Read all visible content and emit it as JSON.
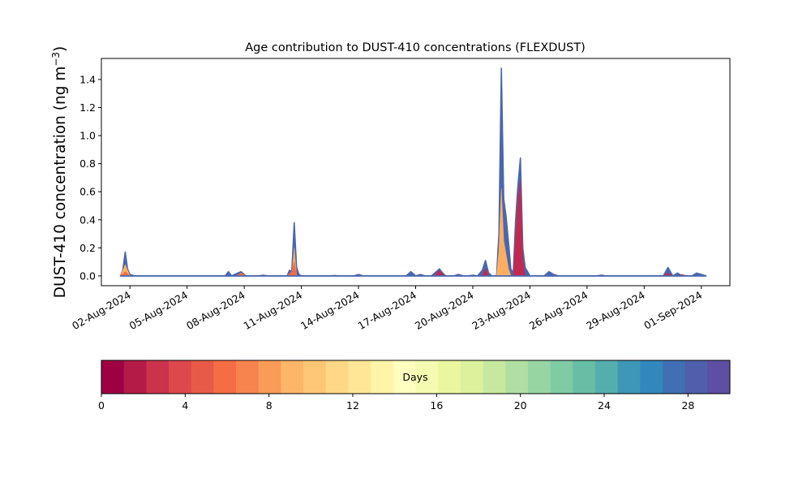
{
  "chart_data": {
    "type": "area",
    "title": "Age contribution to DUST-410 concentrations (FLEXDUST)",
    "ylabel": "DUST-410 concentration (ng m⁻³)",
    "ylabel_main": "DUST-410 concentration (ng m",
    "ylabel_sup": "−3",
    "ylabel_end": ")",
    "xlabel": "",
    "xlim": [
      "2024-07-31T12:00",
      "2024-09-02T12:00"
    ],
    "ylim": [
      -0.07,
      1.55
    ],
    "yticks": [
      0.0,
      0.2,
      0.4,
      0.6,
      0.8,
      1.0,
      1.2,
      1.4
    ],
    "ytick_labels": [
      "0.0",
      "0.2",
      "0.4",
      "0.6",
      "0.8",
      "1.0",
      "1.2",
      "1.4"
    ],
    "xticks": [
      "2024-08-02",
      "2024-08-05",
      "2024-08-08",
      "2024-08-11",
      "2024-08-14",
      "2024-08-17",
      "2024-08-20",
      "2024-08-23",
      "2024-08-26",
      "2024-08-29",
      "2024-09-01"
    ],
    "xtick_labels": [
      "02-Aug-2024",
      "05-Aug-2024",
      "08-Aug-2024",
      "11-Aug-2024",
      "14-Aug-2024",
      "17-Aug-2024",
      "20-Aug-2024",
      "23-Aug-2024",
      "26-Aug-2024",
      "29-Aug-2024",
      "01-Sep-2024"
    ],
    "series": [
      {
        "color": "#4a67ae",
        "points": [
          [
            "2024-08-01T12:00",
            0.0
          ],
          [
            "2024-08-01T15:00",
            0.04
          ],
          [
            "2024-08-01T18:00",
            0.17
          ],
          [
            "2024-08-01T21:00",
            0.05
          ],
          [
            "2024-08-02T00:00",
            0.01
          ],
          [
            "2024-08-02T06:00",
            0.0
          ],
          [
            "2024-08-07T00:00",
            0.0
          ],
          [
            "2024-08-07T04:00",
            0.03
          ],
          [
            "2024-08-07T08:00",
            0.0
          ],
          [
            "2024-08-07T16:00",
            0.02
          ],
          [
            "2024-08-07T20:00",
            0.03
          ],
          [
            "2024-08-08T02:00",
            0.0
          ],
          [
            "2024-08-08T18:00",
            0.0
          ],
          [
            "2024-08-09T00:00",
            0.005
          ],
          [
            "2024-08-09T06:00",
            0.0
          ],
          [
            "2024-08-10T06:00",
            0.0
          ],
          [
            "2024-08-10T09:00",
            0.04
          ],
          [
            "2024-08-10T12:00",
            0.03
          ],
          [
            "2024-08-10T15:00",
            0.38
          ],
          [
            "2024-08-10T18:00",
            0.06
          ],
          [
            "2024-08-10T21:00",
            0.01
          ],
          [
            "2024-08-11T00:00",
            0.0
          ],
          [
            "2024-08-12T12:00",
            0.0
          ],
          [
            "2024-08-12T18:00",
            0.003
          ],
          [
            "2024-08-12T23:00",
            0.0
          ],
          [
            "2024-08-13T18:00",
            0.0
          ],
          [
            "2024-08-14T00:00",
            0.01
          ],
          [
            "2024-08-14T06:00",
            0.0
          ],
          [
            "2024-08-16T12:00",
            0.0
          ],
          [
            "2024-08-16T18:00",
            0.03
          ],
          [
            "2024-08-17T00:00",
            0.0
          ],
          [
            "2024-08-17T06:00",
            0.01
          ],
          [
            "2024-08-17T12:00",
            0.0
          ],
          [
            "2024-08-17T20:00",
            0.0
          ],
          [
            "2024-08-18T02:00",
            0.03
          ],
          [
            "2024-08-18T06:00",
            0.05
          ],
          [
            "2024-08-18T10:00",
            0.02
          ],
          [
            "2024-08-18T14:00",
            0.0
          ],
          [
            "2024-08-19T00:00",
            0.0
          ],
          [
            "2024-08-19T06:00",
            0.01
          ],
          [
            "2024-08-19T12:00",
            0.0
          ],
          [
            "2024-08-19T18:00",
            0.0
          ],
          [
            "2024-08-20T00:00",
            0.005
          ],
          [
            "2024-08-20T06:00",
            0.0
          ],
          [
            "2024-08-20T06:00",
            0.0
          ],
          [
            "2024-08-20T12:00",
            0.04
          ],
          [
            "2024-08-20T16:00",
            0.11
          ],
          [
            "2024-08-20T20:00",
            0.02
          ],
          [
            "2024-08-21T00:00",
            0.0
          ],
          [
            "2024-08-21T06:00",
            0.0
          ],
          [
            "2024-08-21T09:00",
            0.3
          ],
          [
            "2024-08-21T12:00",
            1.48
          ],
          [
            "2024-08-21T15:00",
            0.55
          ],
          [
            "2024-08-21T18:00",
            0.42
          ],
          [
            "2024-08-21T21:00",
            0.24
          ],
          [
            "2024-08-22T00:00",
            0.05
          ],
          [
            "2024-08-22T03:00",
            0.02
          ],
          [
            "2024-08-22T06:00",
            0.4
          ],
          [
            "2024-08-22T09:00",
            0.65
          ],
          [
            "2024-08-22T12:00",
            0.84
          ],
          [
            "2024-08-22T15:00",
            0.2
          ],
          [
            "2024-08-22T18:00",
            0.06
          ],
          [
            "2024-08-22T21:00",
            0.03
          ],
          [
            "2024-08-23T00:00",
            0.0
          ],
          [
            "2024-08-23T18:00",
            0.0
          ],
          [
            "2024-08-24T00:00",
            0.03
          ],
          [
            "2024-08-24T06:00",
            0.01
          ],
          [
            "2024-08-24T12:00",
            0.0
          ],
          [
            "2024-08-26T12:00",
            0.0
          ],
          [
            "2024-08-26T18:00",
            0.005
          ],
          [
            "2024-08-27T00:00",
            0.0
          ],
          [
            "2024-08-30T00:00",
            0.0
          ],
          [
            "2024-08-30T06:00",
            0.06
          ],
          [
            "2024-08-30T12:00",
            0.0
          ],
          [
            "2024-08-30T18:00",
            0.02
          ],
          [
            "2024-08-31T00:00",
            0.0
          ],
          [
            "2024-08-31T12:00",
            0.0
          ],
          [
            "2024-08-31T18:00",
            0.02
          ],
          [
            "2024-09-01T00:00",
            0.01
          ],
          [
            "2024-09-01T06:00",
            0.0
          ]
        ]
      },
      {
        "color": "#fdae61",
        "points": [
          [
            "2024-08-01T12:00",
            0.0
          ],
          [
            "2024-08-01T18:00",
            0.08
          ],
          [
            "2024-08-02T00:00",
            0.0
          ],
          [
            "2024-08-10T12:00",
            0.0
          ],
          [
            "2024-08-10T15:00",
            0.2
          ],
          [
            "2024-08-10T18:00",
            0.0
          ],
          [
            "2024-08-21T06:00",
            0.0
          ],
          [
            "2024-08-21T09:00",
            0.18
          ],
          [
            "2024-08-21T12:00",
            0.62
          ],
          [
            "2024-08-21T15:00",
            0.25
          ],
          [
            "2024-08-21T18:00",
            0.15
          ],
          [
            "2024-08-21T21:00",
            0.05
          ],
          [
            "2024-08-22T00:00",
            0.0
          ]
        ]
      },
      {
        "color": "#f46d43",
        "points": [
          [
            "2024-08-01T12:00",
            0.0
          ],
          [
            "2024-08-01T18:00",
            0.03
          ],
          [
            "2024-08-02T00:00",
            0.0
          ],
          [
            "2024-08-07T14:00",
            0.0
          ],
          [
            "2024-08-07T20:00",
            0.02
          ],
          [
            "2024-08-08T02:00",
            0.0
          ],
          [
            "2024-08-10T06:00",
            0.0
          ],
          [
            "2024-08-10T12:00",
            0.03
          ],
          [
            "2024-08-10T15:00",
            0.1
          ],
          [
            "2024-08-10T18:00",
            0.0
          ]
        ]
      },
      {
        "color": "#c2294f",
        "points": [
          [
            "2024-08-18T00:00",
            0.0
          ],
          [
            "2024-08-18T06:00",
            0.04
          ],
          [
            "2024-08-18T12:00",
            0.0
          ],
          [
            "2024-08-20T12:00",
            0.0
          ],
          [
            "2024-08-20T16:00",
            0.05
          ],
          [
            "2024-08-20T20:00",
            0.0
          ],
          [
            "2024-08-22T03:00",
            0.0
          ],
          [
            "2024-08-22T06:00",
            0.3
          ],
          [
            "2024-08-22T09:00",
            0.55
          ],
          [
            "2024-08-22T12:00",
            0.68
          ],
          [
            "2024-08-22T15:00",
            0.12
          ],
          [
            "2024-08-22T18:00",
            0.0
          ],
          [
            "2024-08-30T00:00",
            0.0
          ],
          [
            "2024-08-30T06:00",
            0.02
          ],
          [
            "2024-08-30T12:00",
            0.0
          ],
          [
            "2024-08-30T18:00",
            0.0
          ],
          [
            "2024-08-31T00:00",
            0.01
          ],
          [
            "2024-08-31T06:00",
            0.0
          ]
        ]
      }
    ],
    "colorbar": {
      "label": "Days",
      "range": [
        0,
        30
      ],
      "ticks": [
        0,
        4,
        8,
        12,
        16,
        20,
        24,
        28
      ],
      "tick_labels": [
        "0",
        "4",
        "8",
        "12",
        "16",
        "20",
        "24",
        "28"
      ],
      "colors": [
        "#9e0142",
        "#b51b47",
        "#cb334c",
        "#dc484c",
        "#e85a48",
        "#f46d43",
        "#f7844e",
        "#fa9b58",
        "#fdb567",
        "#fdc776",
        "#fed887",
        "#fee696",
        "#fff4a8",
        "#ffffbf",
        "#f5fbb0",
        "#eaf79e",
        "#dbf19c",
        "#c7e99f",
        "#b1dfa3",
        "#98d5a4",
        "#7fcba4",
        "#67bea5",
        "#54aeac",
        "#3f97b7",
        "#3288bd",
        "#4070b3",
        "#4f5fab",
        "#5e4fa2"
      ]
    }
  }
}
